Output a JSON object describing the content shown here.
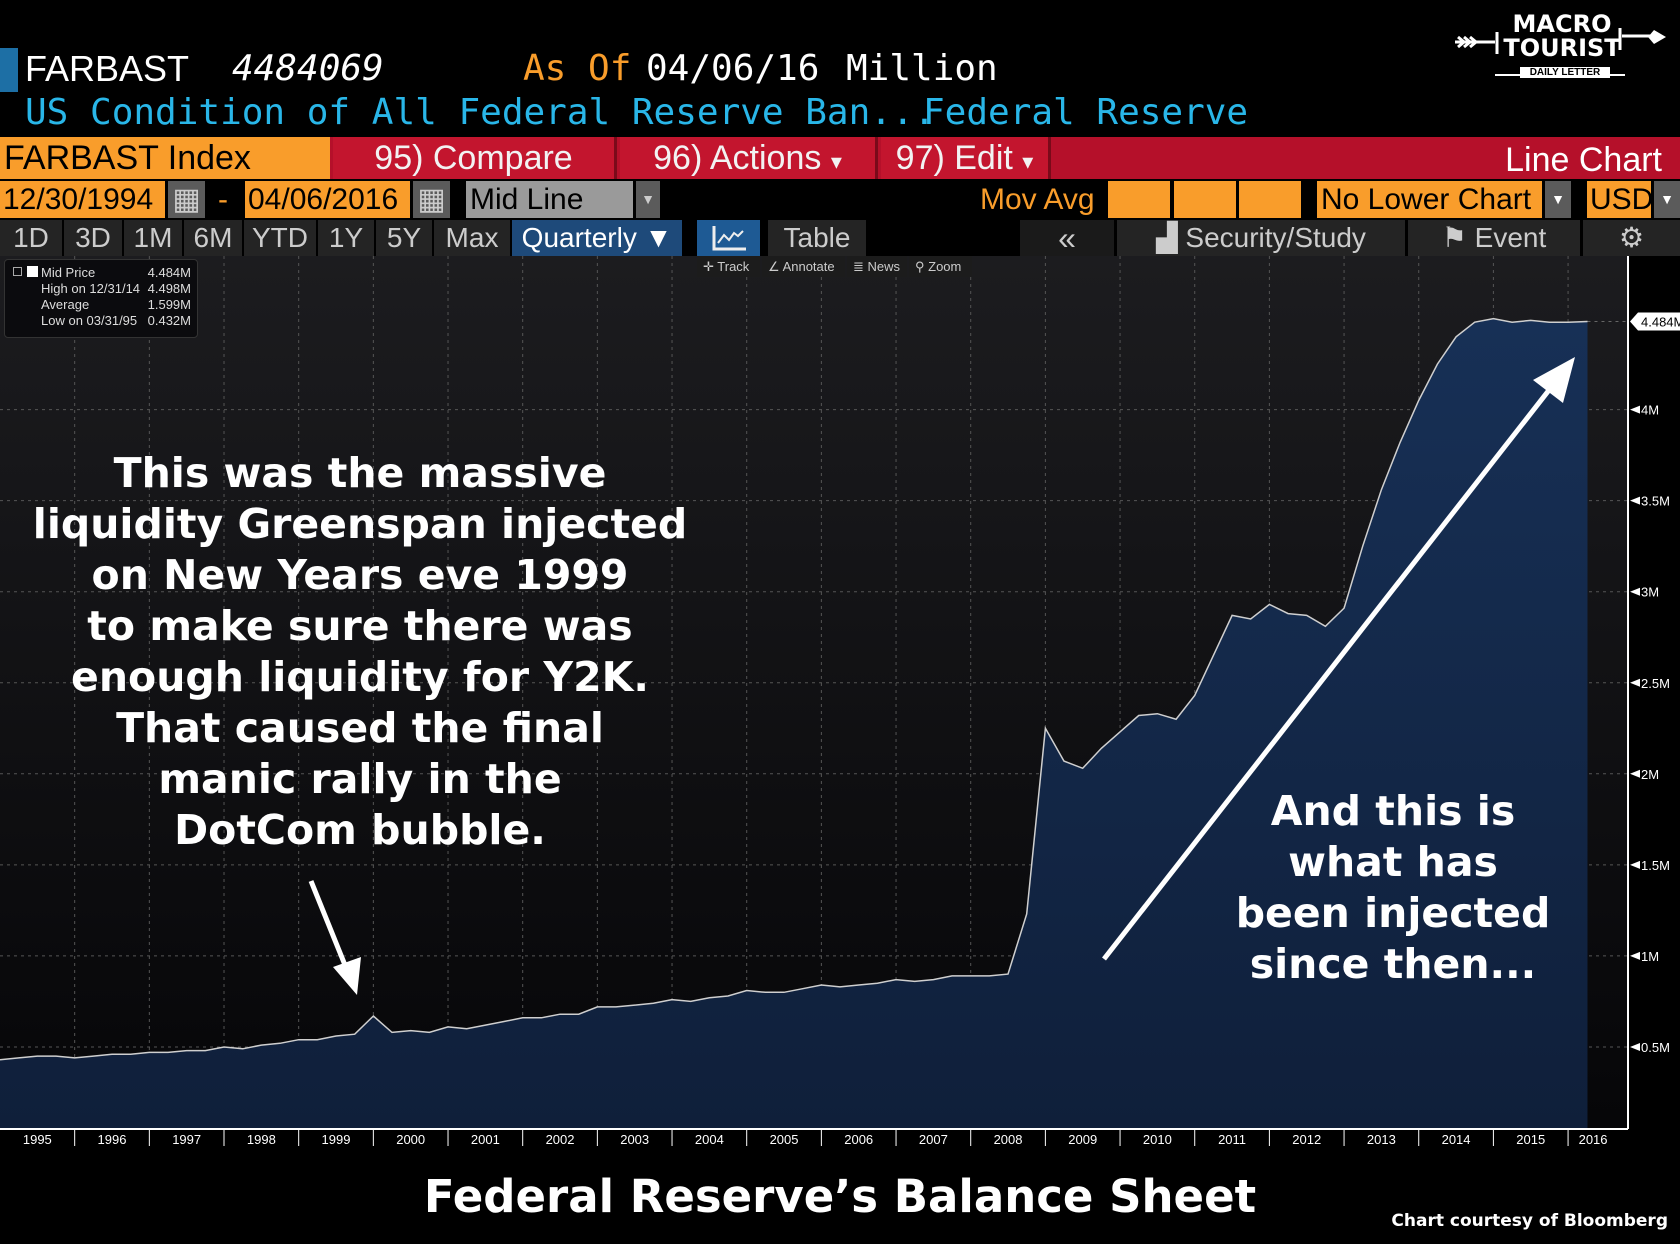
{
  "header": {
    "ticker": "FARBAST",
    "value": "4484069",
    "as_of_label": "As Of",
    "as_of_date": "04/06/16",
    "units": "Million",
    "description": "US Condition of All Federal Reserve Ban...",
    "source": "Federal Reserve"
  },
  "logo": {
    "line1": "MACRO",
    "line2": "TOURIST",
    "line3": "DAILY LETTER"
  },
  "toolbar": {
    "security": "FARBAST Index",
    "compare": "95) Compare",
    "actions": "96) Actions",
    "edit": "97) Edit",
    "chart_type": "Line Chart",
    "caret": "▾"
  },
  "range": {
    "start": "12/30/1994",
    "dash": "-",
    "end": "04/06/2016",
    "style": "Mid Line",
    "mov_avg": "Mov Avg",
    "lower": "No Lower Chart",
    "currency": "USD"
  },
  "periods": [
    "1D",
    "3D",
    "1M",
    "6M",
    "YTD",
    "1Y",
    "5Y",
    "Max"
  ],
  "frequency": "Quarterly ▼",
  "view": {
    "table": "Table",
    "collapse": "«",
    "security_study": "Security/Study",
    "event": "Event"
  },
  "subtools": [
    "Track",
    "Annotate",
    "News",
    "Zoom"
  ],
  "legend": [
    {
      "label": "Mid Price",
      "value": "4.484M"
    },
    {
      "label": "High on 12/31/14",
      "value": "4.498M"
    },
    {
      "label": "Average",
      "value": "1.599M"
    },
    {
      "label": "Low on 03/31/95",
      "value": "0.432M"
    }
  ],
  "annotations": {
    "left": [
      "This was the massive",
      "liquidity Greenspan injected",
      "on New Years eve 1999",
      "to make sure there was",
      "enough liquidity for Y2K.",
      "That caused the final",
      "manic rally in the",
      "DotCom bubble."
    ],
    "right": [
      "And this is",
      "what has",
      "been injected",
      "since then..."
    ]
  },
  "caption": "Federal Reserve’s Balance Sheet",
  "credit": "Chart courtesy of Bloomberg",
  "colors": {
    "fill": "#13284a",
    "line": "#d0d0d0",
    "orange": "#f99d2b",
    "red": "#c3152e",
    "cyan": "#29b6e8"
  },
  "chart_data": {
    "type": "area",
    "title": "Federal Reserve’s Balance Sheet",
    "ylabel": "Million",
    "xlim": [
      1995,
      2016.4
    ],
    "ylim": [
      0,
      4.9
    ],
    "yticks": [
      0.5,
      1,
      1.5,
      2,
      2.5,
      3,
      3.5,
      4
    ],
    "ytick_labels": [
      "0.5M",
      "1M",
      "1.5M",
      "2M",
      "2.5M",
      "3M",
      "3.5M",
      "4M"
    ],
    "xtick_labels": [
      "1995",
      "1996",
      "1997",
      "1998",
      "1999",
      "2000",
      "2001",
      "2002",
      "2003",
      "2004",
      "2005",
      "2006",
      "2007",
      "2008",
      "2009",
      "2010",
      "2011",
      "2012",
      "2013",
      "2014",
      "2015",
      "2016"
    ],
    "last_label": "4.484M",
    "last_value": 4.484,
    "x": [
      1995,
      1995.25,
      1995.5,
      1995.75,
      1996,
      1996.25,
      1996.5,
      1996.75,
      1997,
      1997.25,
      1997.5,
      1997.75,
      1998,
      1998.25,
      1998.5,
      1998.75,
      1999,
      1999.25,
      1999.5,
      1999.75,
      2000,
      2000.25,
      2000.5,
      2000.75,
      2001,
      2001.25,
      2001.5,
      2001.75,
      2002,
      2002.25,
      2002.5,
      2002.75,
      2003,
      2003.25,
      2003.5,
      2003.75,
      2004,
      2004.25,
      2004.5,
      2004.75,
      2005,
      2005.25,
      2005.5,
      2005.75,
      2006,
      2006.25,
      2006.5,
      2006.75,
      2007,
      2007.25,
      2007.5,
      2007.75,
      2008,
      2008.25,
      2008.5,
      2008.75,
      2009,
      2009.25,
      2009.5,
      2009.75,
      2010,
      2010.25,
      2010.5,
      2010.75,
      2011,
      2011.25,
      2011.5,
      2011.75,
      2012,
      2012.25,
      2012.5,
      2012.75,
      2013,
      2013.25,
      2013.5,
      2013.75,
      2014,
      2014.25,
      2014.5,
      2014.75,
      2015,
      2015.25,
      2015.5,
      2015.75,
      2016,
      2016.26
    ],
    "values": [
      0.43,
      0.44,
      0.45,
      0.45,
      0.44,
      0.45,
      0.46,
      0.46,
      0.47,
      0.47,
      0.48,
      0.48,
      0.5,
      0.49,
      0.51,
      0.52,
      0.54,
      0.54,
      0.56,
      0.57,
      0.67,
      0.58,
      0.59,
      0.58,
      0.61,
      0.6,
      0.62,
      0.64,
      0.66,
      0.66,
      0.68,
      0.68,
      0.72,
      0.72,
      0.73,
      0.74,
      0.76,
      0.75,
      0.77,
      0.78,
      0.81,
      0.8,
      0.8,
      0.82,
      0.84,
      0.83,
      0.84,
      0.85,
      0.87,
      0.86,
      0.87,
      0.89,
      0.89,
      0.89,
      0.9,
      1.23,
      2.25,
      2.07,
      2.03,
      2.14,
      2.23,
      2.32,
      2.33,
      2.3,
      2.43,
      2.65,
      2.87,
      2.85,
      2.93,
      2.88,
      2.87,
      2.81,
      2.91,
      3.25,
      3.56,
      3.82,
      4.05,
      4.25,
      4.4,
      4.48,
      4.5,
      4.48,
      4.49,
      4.48,
      4.48,
      4.484
    ]
  }
}
